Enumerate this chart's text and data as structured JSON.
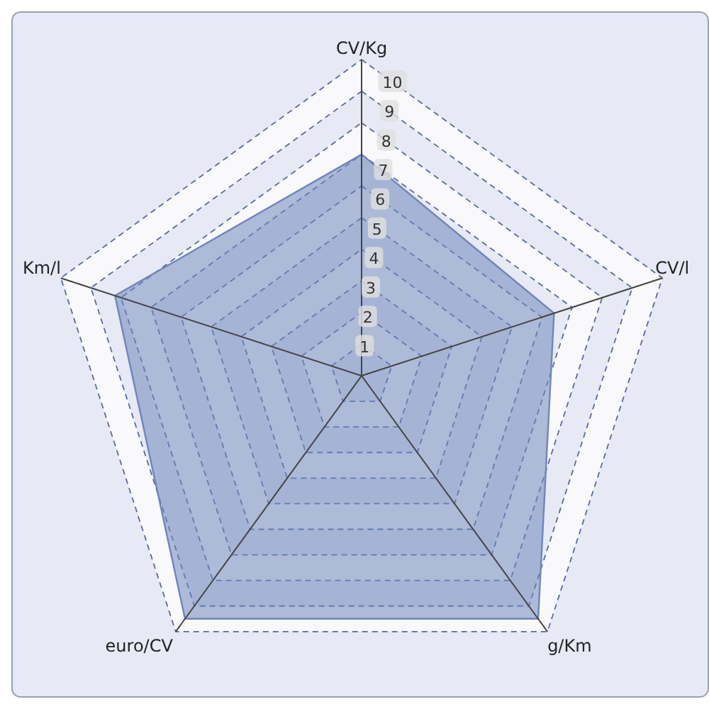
{
  "chart_data": {
    "type": "radar",
    "categories": [
      "CV/Kg",
      "CV/l",
      "g/Km",
      "euro/CV",
      "Km/l"
    ],
    "series": [
      {
        "color": "#6f86bb",
        "values": [
          7,
          6.4,
          9.5,
          9.5,
          8.2
        ]
      }
    ],
    "ylim": [
      0,
      10
    ],
    "yticks": [
      1,
      2,
      3,
      4,
      5,
      6,
      7,
      8,
      9,
      10
    ],
    "grid": true
  }
}
